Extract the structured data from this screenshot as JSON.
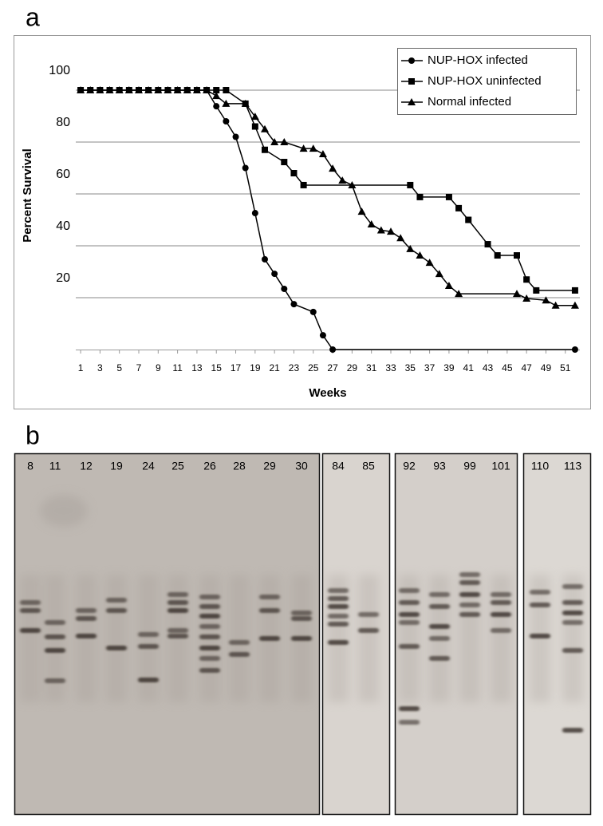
{
  "chart_data": {
    "type": "line",
    "panel_label": "a",
    "ylabel": "Percent Survival",
    "xlabel": "Weeks",
    "xlim": [
      0.5,
      52.5
    ],
    "xticks": [
      1,
      3,
      5,
      7,
      9,
      11,
      13,
      15,
      17,
      19,
      21,
      23,
      25,
      27,
      29,
      31,
      33,
      35,
      37,
      39,
      41,
      43,
      45,
      47,
      49,
      51
    ],
    "ylim": [
      0,
      120
    ],
    "yticks": [
      20,
      40,
      60,
      80,
      100
    ],
    "grid": true,
    "legend": "top-right",
    "series": [
      {
        "name": "NUP-HOX infected",
        "color": "#000000",
        "marker": "circle",
        "x": [
          1,
          2,
          3,
          4,
          5,
          6,
          7,
          8,
          9,
          10,
          11,
          12,
          13,
          14,
          15,
          16,
          17,
          18,
          19,
          20,
          21,
          22,
          23,
          25,
          26,
          27,
          52
        ],
        "values": [
          100,
          100,
          100,
          100,
          100,
          100,
          100,
          100,
          100,
          100,
          100,
          100,
          100,
          100,
          93.8,
          88,
          82,
          70,
          52.6,
          34.8,
          29.2,
          23.4,
          17.5,
          14.5,
          5.5,
          0,
          0
        ]
      },
      {
        "name": "NUP-HOX uninfected",
        "color": "#000000",
        "marker": "square",
        "x": [
          1,
          2,
          3,
          4,
          5,
          6,
          7,
          8,
          9,
          10,
          11,
          12,
          13,
          14,
          15,
          16,
          18,
          19,
          20,
          22,
          23,
          24,
          35,
          36,
          39,
          40,
          41,
          43,
          44,
          46,
          47,
          48,
          52
        ],
        "values": [
          100,
          100,
          100,
          100,
          100,
          100,
          100,
          100,
          100,
          100,
          100,
          100,
          100,
          100,
          100,
          100,
          94.8,
          86,
          77,
          72.3,
          68,
          63.4,
          63.4,
          58.8,
          58.8,
          54.5,
          50,
          40.6,
          36.3,
          36.3,
          27,
          22.8,
          22.8
        ]
      },
      {
        "name": "Normal infected",
        "color": "#000000",
        "marker": "triangle",
        "x": [
          1,
          2,
          3,
          4,
          5,
          6,
          7,
          8,
          9,
          10,
          11,
          12,
          13,
          14,
          15,
          16,
          18,
          19,
          20,
          21,
          22,
          24,
          25,
          26,
          27,
          28,
          29,
          30,
          31,
          32,
          33,
          34,
          35,
          36,
          37,
          38,
          39,
          40,
          46,
          47,
          49,
          50,
          52
        ],
        "values": [
          100,
          100,
          100,
          100,
          100,
          100,
          100,
          100,
          100,
          100,
          100,
          100,
          100,
          100,
          97.8,
          94.8,
          94.8,
          89.8,
          85,
          80,
          80,
          77.5,
          77.5,
          75.4,
          69.8,
          65.2,
          63.4,
          53.2,
          48.3,
          46,
          45.5,
          43,
          38.8,
          36.3,
          33.5,
          29.2,
          24.6,
          21.5,
          21.5,
          19.7,
          19,
          17,
          17
        ]
      }
    ]
  },
  "blot": {
    "panel_label": "b",
    "panels": [
      {
        "lanes": [
          "8",
          "11",
          "12",
          "19",
          "24",
          "25",
          "26",
          "28",
          "29",
          "30"
        ]
      },
      {
        "lanes": [
          "84",
          "85"
        ]
      },
      {
        "lanes": [
          "92",
          "93",
          "99",
          "101"
        ]
      },
      {
        "lanes": [
          "110",
          "113"
        ]
      }
    ]
  }
}
